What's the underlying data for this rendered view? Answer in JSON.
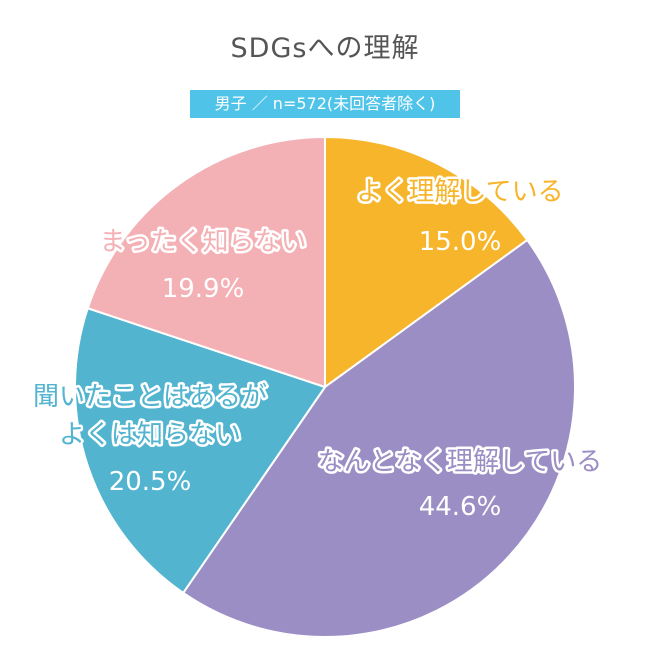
{
  "chart_data": {
    "type": "pie",
    "title": "SDGsへの理解",
    "subtitle": "男子 ／ n=572(未回答者除く)",
    "slices": [
      {
        "label_lines": [
          "よく理解している"
        ],
        "value": 15.0,
        "value_label": "15.0%",
        "color": "#f7b52b"
      },
      {
        "label_lines": [
          "なんとなく理解している"
        ],
        "value": 44.6,
        "value_label": "44.6%",
        "color": "#9b8ec4"
      },
      {
        "label_lines": [
          "聞いたことはあるが",
          "よくは知らない"
        ],
        "value": 20.5,
        "value_label": "20.5%",
        "color": "#52b4cf"
      },
      {
        "label_lines": [
          "まったく知らない"
        ],
        "value": 19.9,
        "value_label": "19.9%",
        "color": "#f4b1b5"
      }
    ]
  }
}
